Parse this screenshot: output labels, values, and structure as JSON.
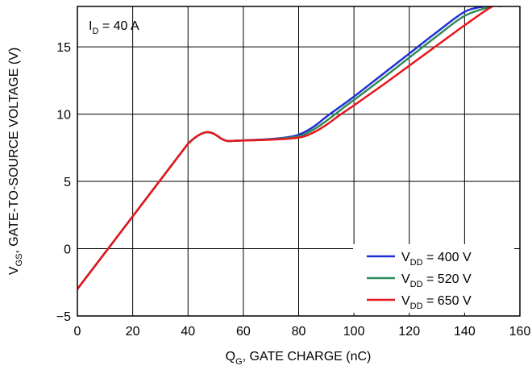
{
  "chart_data": {
    "type": "line",
    "title": "",
    "annotation": {
      "main": "I",
      "sub": "D",
      "rest": " = 40 A"
    },
    "xlabel": {
      "main": "Q",
      "sub": "G",
      "rest": ", GATE CHARGE (nC)"
    },
    "ylabel": {
      "main": "V",
      "sub": "GS",
      "rest": ", GATE-TO-SOURCE VOLTAGE (V)"
    },
    "xlim": [
      0,
      160
    ],
    "ylim": [
      -5,
      18
    ],
    "xticks": [
      0,
      20,
      40,
      60,
      80,
      100,
      120,
      140,
      160
    ],
    "xtick_labels": [
      "0",
      "20",
      "40",
      "60",
      "80",
      "100",
      "120",
      "140",
      "160"
    ],
    "yticks": [
      -5,
      0,
      5,
      10,
      15
    ],
    "ytick_labels": [
      "−5",
      "0",
      "5",
      "10",
      "15"
    ],
    "grid": true,
    "legend_position": "bottom-right",
    "series": [
      {
        "label": {
          "main": "V",
          "sub": "DD",
          "rest": " = 400 V"
        },
        "color": "#1f2fd6",
        "x": [
          0,
          40,
          55,
          70,
          78,
          82,
          86,
          90,
          95,
          100,
          110,
          120,
          130,
          140,
          147
        ],
        "y": [
          -3,
          7.8,
          8.0,
          8.15,
          8.35,
          8.65,
          9.15,
          9.8,
          10.55,
          11.3,
          12.9,
          14.5,
          16.1,
          17.6,
          18
        ]
      },
      {
        "label": {
          "main": "V",
          "sub": "DD",
          "rest": " = 520 V"
        },
        "color": "#2e8b57",
        "x": [
          0,
          40,
          55,
          70,
          80,
          84,
          88,
          92,
          97,
          100,
          110,
          120,
          130,
          140,
          149.5
        ],
        "y": [
          -3,
          7.8,
          8.0,
          8.12,
          8.35,
          8.7,
          9.2,
          9.8,
          10.6,
          11.05,
          12.6,
          14.2,
          15.8,
          17.3,
          18
        ]
      },
      {
        "label": {
          "main": "V",
          "sub": "DD",
          "rest": " = 650 V"
        },
        "color": "#e8151b",
        "x": [
          0,
          40,
          55,
          70,
          80,
          85,
          90,
          95,
          100,
          110,
          120,
          130,
          140,
          150,
          153
        ],
        "y": [
          -3,
          7.8,
          8.0,
          8.1,
          8.25,
          8.6,
          9.2,
          9.95,
          10.65,
          12.1,
          13.6,
          15.1,
          16.6,
          18,
          18
        ]
      }
    ]
  }
}
